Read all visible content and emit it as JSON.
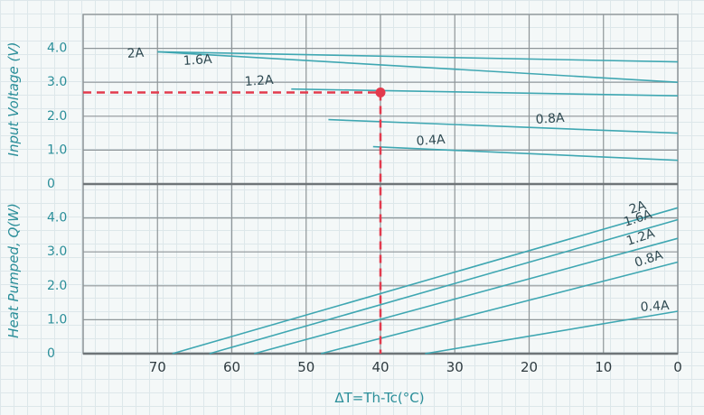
{
  "chart_data": [
    {
      "type": "line",
      "ylabel": "Input Voltage (V)",
      "xlabel": "ΔT=Th-Tc(°C)",
      "x_reversed": true,
      "xlim": [
        0,
        80
      ],
      "ylim": [
        0,
        4.0
      ],
      "yticks": [
        "4.0",
        "3.0",
        "2.0",
        "1.0",
        "0"
      ],
      "grid": true,
      "series": [
        {
          "name": "2A",
          "x": [
            70,
            0
          ],
          "y": [
            3.9,
            3.0
          ]
        },
        {
          "name": "1.6A",
          "x": [
            70,
            0
          ],
          "y": [
            3.9,
            3.6
          ]
        },
        {
          "name": "1.2A",
          "x": [
            52,
            0
          ],
          "y": [
            2.8,
            2.6
          ]
        },
        {
          "name": "0.8A",
          "x": [
            47,
            0
          ],
          "y": [
            1.9,
            1.5
          ]
        },
        {
          "name": "0.4A",
          "x": [
            41,
            0
          ],
          "y": [
            1.1,
            0.7
          ]
        }
      ],
      "marker": {
        "x": 40,
        "y": 2.7
      }
    },
    {
      "type": "line",
      "ylabel": "Heat Pumped, Q(W)",
      "xlabel": "ΔT=Th-Tc(°C)",
      "x_reversed": true,
      "xlim": [
        0,
        80
      ],
      "ylim": [
        0,
        4.0
      ],
      "yticks": [
        "4.0",
        "3.0",
        "2.0",
        "1.0",
        "0"
      ],
      "xticks": [
        "70",
        "60",
        "50",
        "40",
        "30",
        "20",
        "10",
        "0"
      ],
      "grid": true,
      "series": [
        {
          "name": "2A",
          "x": [
            68,
            0
          ],
          "y": [
            0,
            4.3
          ]
        },
        {
          "name": "1.6A",
          "x": [
            63,
            0
          ],
          "y": [
            0,
            3.95
          ]
        },
        {
          "name": "1.2A",
          "x": [
            57,
            0
          ],
          "y": [
            0,
            3.4
          ]
        },
        {
          "name": "0.8A",
          "x": [
            48,
            0
          ],
          "y": [
            0,
            2.7
          ]
        },
        {
          "name": "0.4A",
          "x": [
            34,
            0
          ],
          "y": [
            0,
            1.25
          ]
        }
      ],
      "marker": {
        "x": 40,
        "y": 0
      }
    }
  ]
}
